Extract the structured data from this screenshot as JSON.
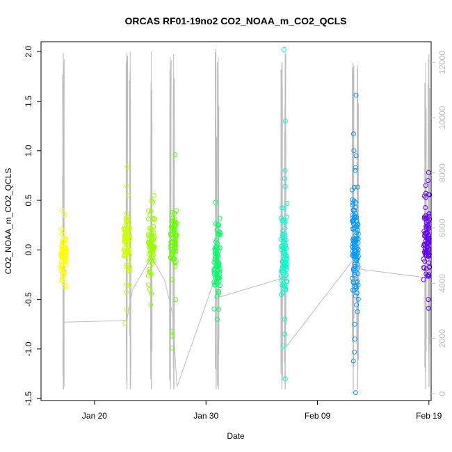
{
  "chart_data": {
    "type": "scatter",
    "title": "ORCAS RF01-19no2 CO2_NOAA_m_CO2_QCLS",
    "xlabel": "Date",
    "ylabel": "CO2_NOAA_m_CO2_QCLS",
    "xlim": [
      15.2,
      50.2
    ],
    "ylim": [
      -1.52,
      2.1
    ],
    "y2lim": [
      -250,
      12750
    ],
    "x_ticks": [
      {
        "value": 20,
        "label": "Jan 20"
      },
      {
        "value": 30,
        "label": "Jan 30"
      },
      {
        "value": 40,
        "label": "Feb 09"
      },
      {
        "value": 50,
        "label": "Feb 19"
      }
    ],
    "y_ticks": [
      {
        "value": -1.5,
        "label": "-1.5"
      },
      {
        "value": -1.0,
        "label": "-1.0"
      },
      {
        "value": -0.5,
        "label": "-0.5"
      },
      {
        "value": 0.0,
        "label": "0.0"
      },
      {
        "value": 0.5,
        "label": "0.5"
      },
      {
        "value": 1.0,
        "label": "1.0"
      },
      {
        "value": 1.5,
        "label": "1.5"
      },
      {
        "value": 2.0,
        "label": "2.0"
      }
    ],
    "y2_ticks": [
      {
        "value": 0,
        "label": "0"
      },
      {
        "value": 2000,
        "label": "2000"
      },
      {
        "value": 4000,
        "label": "4000"
      },
      {
        "value": 6000,
        "label": "6000"
      },
      {
        "value": 8000,
        "label": "8000"
      },
      {
        "value": 10000,
        "label": "10000"
      },
      {
        "value": 12000,
        "label": "12000"
      }
    ],
    "grid": false,
    "flights": [
      {
        "x": 17.2,
        "color": "#ffff00",
        "center": -0.03,
        "spread": 0.13,
        "n": 60,
        "outliers": [
          0.4,
          0.35,
          -0.33,
          -0.28
        ]
      },
      {
        "x": 22.9,
        "color": "#ccff00",
        "center": 0.08,
        "spread": 0.17,
        "n": 70,
        "outliers": [
          0.84,
          0.65,
          -0.6,
          -0.74,
          -0.43,
          0.55
        ]
      },
      {
        "x": 25.1,
        "color": "#99ff00",
        "center": 0.08,
        "spread": 0.18,
        "n": 70,
        "outliers": [
          0.5,
          0.48,
          -0.55,
          -0.44,
          -0.4
        ]
      },
      {
        "x": 27.1,
        "color": "#66ff00",
        "center": 0.08,
        "spread": 0.14,
        "n": 65,
        "outliers": [
          0.96,
          0.37,
          -0.82,
          -0.87,
          -0.99,
          -0.5,
          -0.3
        ]
      },
      {
        "x": 31.0,
        "color": "#00ff66",
        "center": -0.15,
        "spread": 0.18,
        "n": 75,
        "outliers": [
          0.48,
          -0.6,
          -0.7,
          0.25
        ]
      },
      {
        "x": 37.0,
        "color": "#00ffcc",
        "center": -0.05,
        "spread": 0.22,
        "n": 80,
        "outliers": [
          2.02,
          1.3,
          0.8,
          0.72,
          0.64,
          -1.3,
          -0.97,
          -0.85,
          -0.7
        ]
      },
      {
        "x": 43.4,
        "color": "#0099ff",
        "center": 0.05,
        "spread": 0.3,
        "n": 110,
        "outliers": [
          1.56,
          1.17,
          1.0,
          0.95,
          0.8,
          -1.44,
          -1.12,
          -1.03,
          -0.9,
          -0.75
        ]
      },
      {
        "x": 49.8,
        "color": "#6600ff",
        "center": 0.1,
        "spread": 0.22,
        "n": 90,
        "outliers": [
          0.78,
          0.7,
          0.65,
          0.57,
          -0.59,
          -0.5
        ]
      }
    ],
    "altitude": {
      "color": "#bdbdbd",
      "connectors": [
        [
          17.2,
          2590
        ],
        [
          22.9,
          2650
        ],
        [
          23.4,
          3750
        ],
        [
          25.1,
          4950
        ],
        [
          26.3,
          4100
        ],
        [
          27.0,
          2900
        ],
        [
          27.4,
          250
        ],
        [
          31.0,
          4400
        ],
        [
          31.2,
          3500
        ],
        [
          37.0,
          4200
        ],
        [
          37.2,
          1700
        ],
        [
          43.4,
          4950
        ],
        [
          44.0,
          4500
        ],
        [
          49.8,
          4200
        ]
      ],
      "spikes": [
        {
          "x": 17.2,
          "top": 12350,
          "high": 7650,
          "low": 150
        },
        {
          "x": 22.9,
          "top": 12350,
          "high": 11500,
          "low": 150
        },
        {
          "x": 23.2,
          "top": 12400,
          "high": 10500,
          "low": 150
        },
        {
          "x": 25.1,
          "top": 12400,
          "high": 7000,
          "low": 150
        },
        {
          "x": 26.8,
          "top": 12200,
          "high": 10500,
          "low": 150
        },
        {
          "x": 27.1,
          "top": 12300,
          "high": 8000,
          "low": 150
        },
        {
          "x": 30.9,
          "top": 12500,
          "high": 8500,
          "low": 150
        },
        {
          "x": 31.1,
          "top": 12200,
          "high": 8500,
          "low": 150
        },
        {
          "x": 36.8,
          "top": 12000,
          "high": 11000,
          "low": 150
        },
        {
          "x": 37.1,
          "top": 12400,
          "high": 9000,
          "low": 150
        },
        {
          "x": 43.2,
          "top": 12000,
          "high": 11000,
          "low": 150
        },
        {
          "x": 43.6,
          "top": 11900,
          "high": 8500,
          "low": 150
        },
        {
          "x": 49.7,
          "top": 12000,
          "high": 9000,
          "low": 150
        },
        {
          "x": 50.0,
          "top": 12300,
          "high": 8000,
          "low": 250
        }
      ]
    }
  }
}
